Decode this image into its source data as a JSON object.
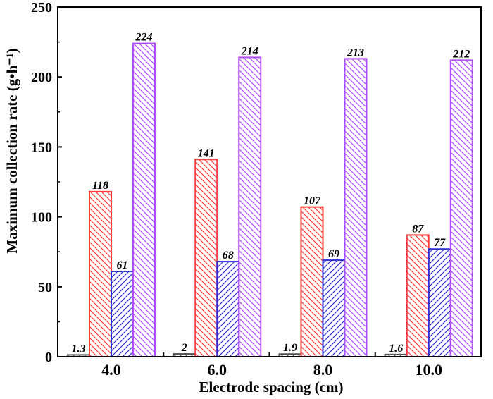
{
  "chart_data": {
    "type": "bar",
    "categories": [
      "4.0",
      "6.0",
      "8.0",
      "10.0"
    ],
    "series": [
      {
        "values": [
          1.3,
          2,
          1.9,
          1.6
        ],
        "labels": [
          "1.3",
          "2",
          "1.9",
          "1.6"
        ],
        "color": "#555555",
        "hatch": "down"
      },
      {
        "values": [
          118,
          141,
          107,
          87
        ],
        "labels": [
          "118",
          "141",
          "107",
          "87"
        ],
        "color": "#ff3b3b",
        "hatch": "down"
      },
      {
        "values": [
          61,
          68,
          69,
          77
        ],
        "labels": [
          "61",
          "68",
          "69",
          "77"
        ],
        "color": "#2f2fd9",
        "hatch": "up"
      },
      {
        "values": [
          224,
          214,
          213,
          212
        ],
        "labels": [
          "224",
          "214",
          "213",
          "212"
        ],
        "color": "#b04cff",
        "hatch": "down"
      }
    ],
    "xlabel": "Electrode spacing (cm)",
    "ylabel": "Maximum collection rate (g•h⁻¹)",
    "ylim": [
      0,
      250
    ],
    "yticks": [
      0,
      50,
      100,
      150,
      200,
      250
    ],
    "grid": false,
    "legend": "none"
  }
}
